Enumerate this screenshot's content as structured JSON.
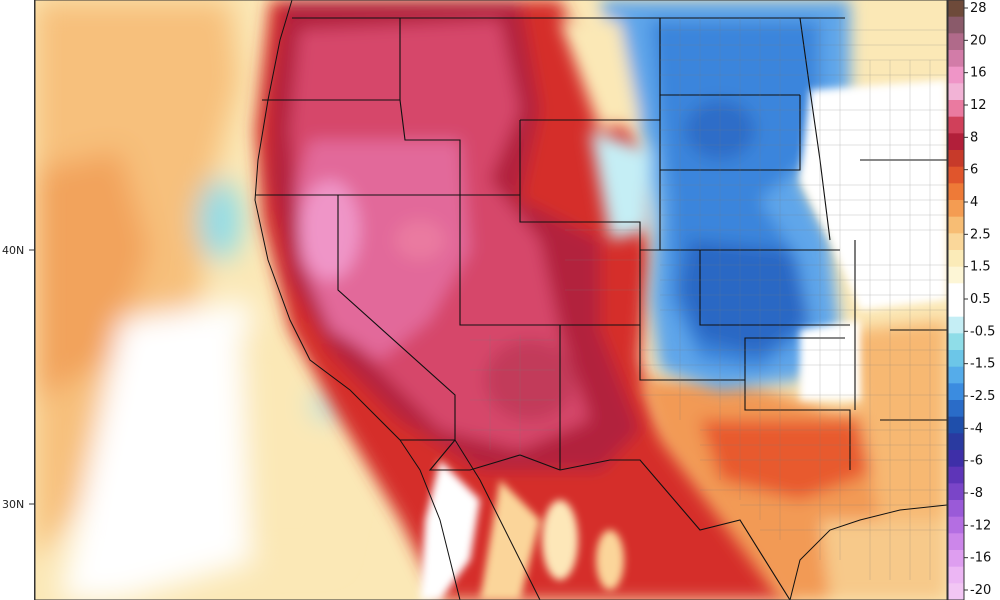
{
  "map": {
    "lat_labels": [
      "40N",
      "30N"
    ],
    "land_color": "#ffffff"
  },
  "colorbar": {
    "labels": [
      "28",
      "20",
      "16",
      "12",
      "8",
      "6",
      "4",
      "2.5",
      "1.5",
      "0.5",
      "-0.5",
      "-1.5",
      "-2.5",
      "-4",
      "-6",
      "-8",
      "-12",
      "-16",
      "-20"
    ],
    "colors": [
      "#6e4a3a",
      "#8a5a6a",
      "#b06a8a",
      "#d27ca8",
      "#ef95c7",
      "#f2b3d6",
      "#ea7aa0",
      "#d0405a",
      "#b21f3a",
      "#c73a2a",
      "#e0552c",
      "#ee7a37",
      "#f49c52",
      "#f7bd74",
      "#fad79a",
      "#fbebb8",
      "#fdf6d6",
      "#ffffff",
      "#ffffff",
      "#c5eef5",
      "#8fdde8",
      "#6cc6e8",
      "#55acea",
      "#3b8ce0",
      "#2a6cc8",
      "#1f4fab",
      "#2a3aa0",
      "#3e2fa8",
      "#5e35b8",
      "#7a45c8",
      "#9a5ad8",
      "#b46ee2",
      "#cc86ea",
      "#de9ef0",
      "#ecb6f4",
      "#f2c6f4"
    ]
  }
}
